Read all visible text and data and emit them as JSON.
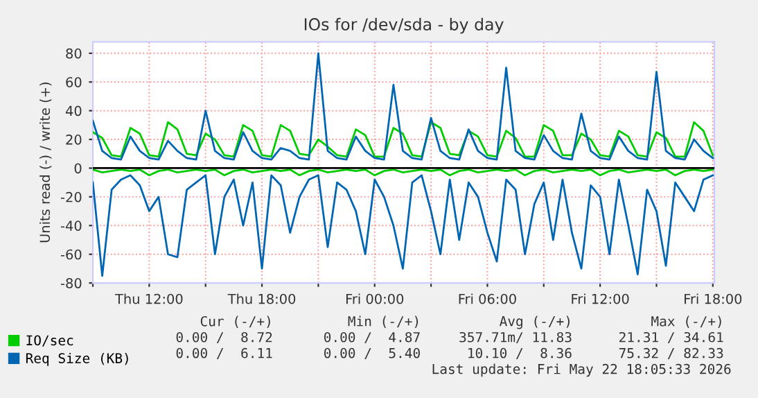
{
  "chart_data": {
    "type": "line",
    "title": "IOs for /dev/sda - by day",
    "ylabel": "Units read (-) / write (+)",
    "x": [
      "2026-05-21T09:00",
      "2026-05-21T09:30",
      "2026-05-21T10:00",
      "2026-05-21T10:30",
      "2026-05-21T11:00",
      "2026-05-21T11:30",
      "2026-05-21T12:00",
      "2026-05-21T12:30",
      "2026-05-21T13:00",
      "2026-05-21T13:30",
      "2026-05-21T14:00",
      "2026-05-21T14:30",
      "2026-05-21T15:00",
      "2026-05-21T15:30",
      "2026-05-21T16:00",
      "2026-05-21T16:30",
      "2026-05-21T17:00",
      "2026-05-21T17:30",
      "2026-05-21T18:00",
      "2026-05-21T18:30",
      "2026-05-21T19:00",
      "2026-05-21T19:30",
      "2026-05-21T20:00",
      "2026-05-21T20:30",
      "2026-05-21T21:00",
      "2026-05-21T21:30",
      "2026-05-21T22:00",
      "2026-05-21T22:30",
      "2026-05-21T23:00",
      "2026-05-21T23:30",
      "2026-05-22T00:00",
      "2026-05-22T00:30",
      "2026-05-22T01:00",
      "2026-05-22T01:30",
      "2026-05-22T02:00",
      "2026-05-22T02:30",
      "2026-05-22T03:00",
      "2026-05-22T03:30",
      "2026-05-22T04:00",
      "2026-05-22T04:30",
      "2026-05-22T05:00",
      "2026-05-22T05:30",
      "2026-05-22T06:00",
      "2026-05-22T06:30",
      "2026-05-22T07:00",
      "2026-05-22T07:30",
      "2026-05-22T08:00",
      "2026-05-22T08:30",
      "2026-05-22T09:00",
      "2026-05-22T09:30",
      "2026-05-22T10:00",
      "2026-05-22T10:30",
      "2026-05-22T11:00",
      "2026-05-22T11:30",
      "2026-05-22T12:00",
      "2026-05-22T12:30",
      "2026-05-22T13:00",
      "2026-05-22T13:30",
      "2026-05-22T14:00",
      "2026-05-22T14:30",
      "2026-05-22T15:00",
      "2026-05-22T15:30",
      "2026-05-22T16:00",
      "2026-05-22T16:30",
      "2026-05-22T17:00",
      "2026-05-22T17:30",
      "2026-05-22T18:00"
    ],
    "series": [
      {
        "name": "IO/sec",
        "color": "#00cc00",
        "values": [
          25,
          21,
          9,
          8,
          28,
          24,
          9,
          8,
          32,
          27,
          10,
          9,
          24,
          20,
          9,
          8,
          30,
          26,
          9,
          8,
          30,
          26,
          10,
          9,
          20,
          15,
          9,
          8,
          27,
          23,
          8,
          8,
          28,
          24,
          9,
          8,
          32,
          28,
          10,
          9,
          26,
          22,
          9,
          8,
          26,
          21,
          8,
          8,
          30,
          26,
          9,
          9,
          24,
          20,
          9,
          8,
          26,
          22,
          9,
          8,
          25,
          21,
          8,
          8,
          32,
          26,
          9
        ]
      },
      {
        "color": "#00cc00",
        "values": [
          -1,
          -3,
          -2,
          -1,
          -2,
          -1,
          -5,
          -2,
          -1,
          -3,
          -2,
          -1,
          -2,
          -1,
          -5,
          -2,
          -1,
          -3,
          -2,
          -1,
          -2,
          -1,
          -5,
          -2,
          -1,
          -3,
          -2,
          -1,
          -2,
          -1,
          -5,
          -2,
          -1,
          -3,
          -2,
          -1,
          -2,
          -1,
          -5,
          -2,
          -1,
          -3,
          -2,
          -1,
          -2,
          -1,
          -5,
          -2,
          -1,
          -3,
          -2,
          -1,
          -2,
          -1,
          -5,
          -2,
          -1,
          -3,
          -2,
          -1,
          -2,
          -1,
          -5,
          -2,
          -1,
          -2,
          -1
        ]
      },
      {
        "name": "Req Size (KB)",
        "color": "#0066b3",
        "values": [
          33,
          12,
          7,
          6,
          22,
          12,
          7,
          6,
          19,
          12,
          7,
          6,
          40,
          12,
          7,
          6,
          25,
          12,
          7,
          6,
          14,
          12,
          7,
          6,
          80,
          12,
          7,
          6,
          22,
          12,
          7,
          6,
          58,
          12,
          7,
          6,
          35,
          12,
          7,
          6,
          27,
          12,
          7,
          6,
          70,
          12,
          7,
          6,
          23,
          12,
          7,
          6,
          38,
          12,
          7,
          6,
          22,
          12,
          7,
          6,
          67,
          12,
          7,
          6,
          20,
          12,
          7
        ]
      },
      {
        "color": "#0066b3",
        "values": [
          -10,
          -75,
          -15,
          -8,
          -5,
          -12,
          -30,
          -20,
          -60,
          -62,
          -15,
          -10,
          -5,
          -60,
          -20,
          -8,
          -40,
          -10,
          -70,
          -5,
          -12,
          -45,
          -20,
          -8,
          -5,
          -55,
          -10,
          -15,
          -30,
          -60,
          -8,
          -20,
          -40,
          -70,
          -10,
          -5,
          -30,
          -60,
          -8,
          -50,
          -10,
          -20,
          -45,
          -65,
          -8,
          -15,
          -60,
          -25,
          -10,
          -50,
          -8,
          -45,
          -70,
          -12,
          -20,
          -60,
          -8,
          -40,
          -74,
          -15,
          -30,
          -68,
          -10,
          -20,
          -30,
          -8,
          -5
        ]
      }
    ],
    "xlim": [
      "2026-05-21T09:00",
      "2026-05-22T18:05"
    ],
    "xticks": [
      {
        "value": "2026-05-21T09:00",
        "label": null
      },
      {
        "value": "2026-05-21T12:00",
        "label": "Thu 12:00"
      },
      {
        "value": "2026-05-21T15:00",
        "label": null
      },
      {
        "value": "2026-05-21T18:00",
        "label": "Thu 18:00"
      },
      {
        "value": "2026-05-21T21:00",
        "label": null
      },
      {
        "value": "2026-05-22T00:00",
        "label": "Fri 00:00"
      },
      {
        "value": "2026-05-22T03:00",
        "label": null
      },
      {
        "value": "2026-05-22T06:00",
        "label": "Fri 06:00"
      },
      {
        "value": "2026-05-22T09:00",
        "label": null
      },
      {
        "value": "2026-05-22T12:00",
        "label": "Fri 12:00"
      },
      {
        "value": "2026-05-22T15:00",
        "label": null
      },
      {
        "value": "2026-05-22T18:00",
        "label": "Fri 18:00"
      }
    ],
    "ylim": [
      -80,
      88
    ],
    "yticks": [
      -80,
      -60,
      -40,
      -20,
      0,
      20,
      40,
      60,
      80
    ],
    "ref_lines": [
      {
        "axis": "y",
        "value": 0,
        "label": null,
        "color": "#000000"
      }
    ],
    "grid": true,
    "legend": "bottom left",
    "marker": "none",
    "line_style": "solid",
    "annotations": [
      "Cur (-/+)",
      "Min (-/+)",
      "Avg (-/+)",
      "Max (-/+)",
      "0.00 /  8.72",
      "0.00 /  4.87",
      "357.71m/ 11.83",
      "21.31 / 34.61",
      "0.00 /  6.11",
      "0.00 /  5.40",
      "10.10 /  8.36",
      "75.32 / 82.33",
      "Last update: Fri May 22 18:05:33 2026"
    ]
  }
}
